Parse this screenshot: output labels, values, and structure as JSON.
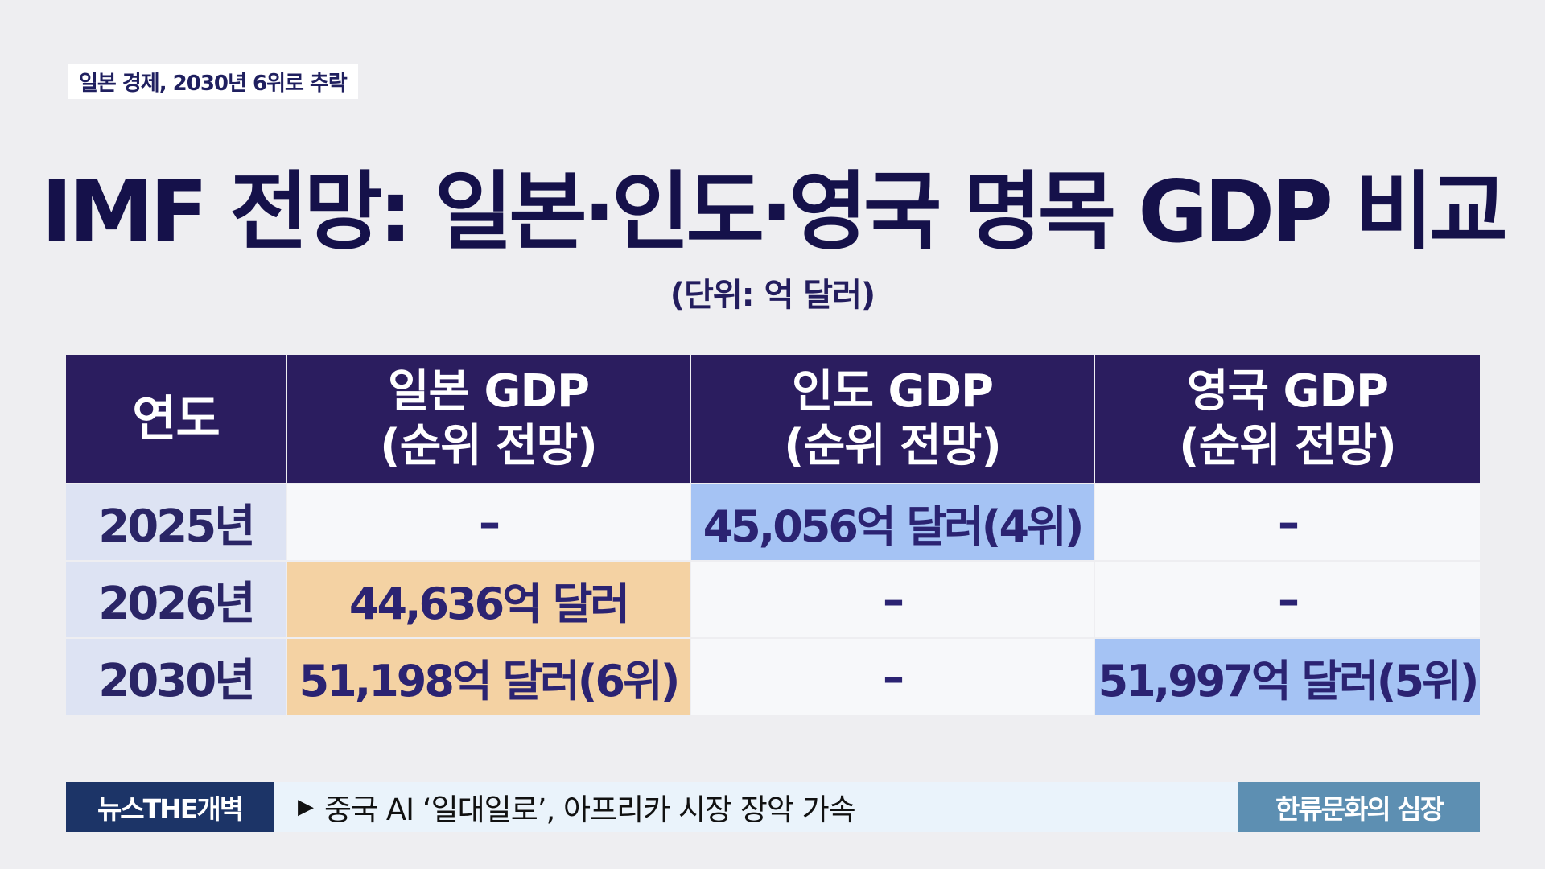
{
  "topic_tag": "일본 경제, 2030년 6위로 추락",
  "title": "IMF 전망: 일본·인도·영국 명목 GDP 비교",
  "subtitle": "(단위: 억 달러)",
  "table": {
    "headers": [
      {
        "line1": "연도",
        "line2": ""
      },
      {
        "line1": "일본 GDP",
        "line2": "(순위 전망)"
      },
      {
        "line1": "인도 GDP",
        "line2": "(순위 전망)"
      },
      {
        "line1": "영국 GDP",
        "line2": "(순위 전망)"
      }
    ],
    "rows": [
      {
        "year": "2025년",
        "japan": "–",
        "india": "45,056억 달러(4위)",
        "uk": "–"
      },
      {
        "year": "2026년",
        "japan": "44,636억 달러",
        "india": "–",
        "uk": "–"
      },
      {
        "year": "2030년",
        "japan": "51,198억 달러(6위)",
        "india": "–",
        "uk": "51,997억 달러(5위)"
      }
    ],
    "highlight_colors": {
      "header": "#2b1d5f",
      "japan": "#f4d2a3",
      "india_uk": "#a5c3f4"
    }
  },
  "ticker": {
    "brand": "뉴스THE개벽",
    "arrow_icon": "play-triangle-icon",
    "headline": "중국 AI ‘일대일로’, 아프리카 시장 장악 가속",
    "right_label": "한류문화의 심장"
  }
}
